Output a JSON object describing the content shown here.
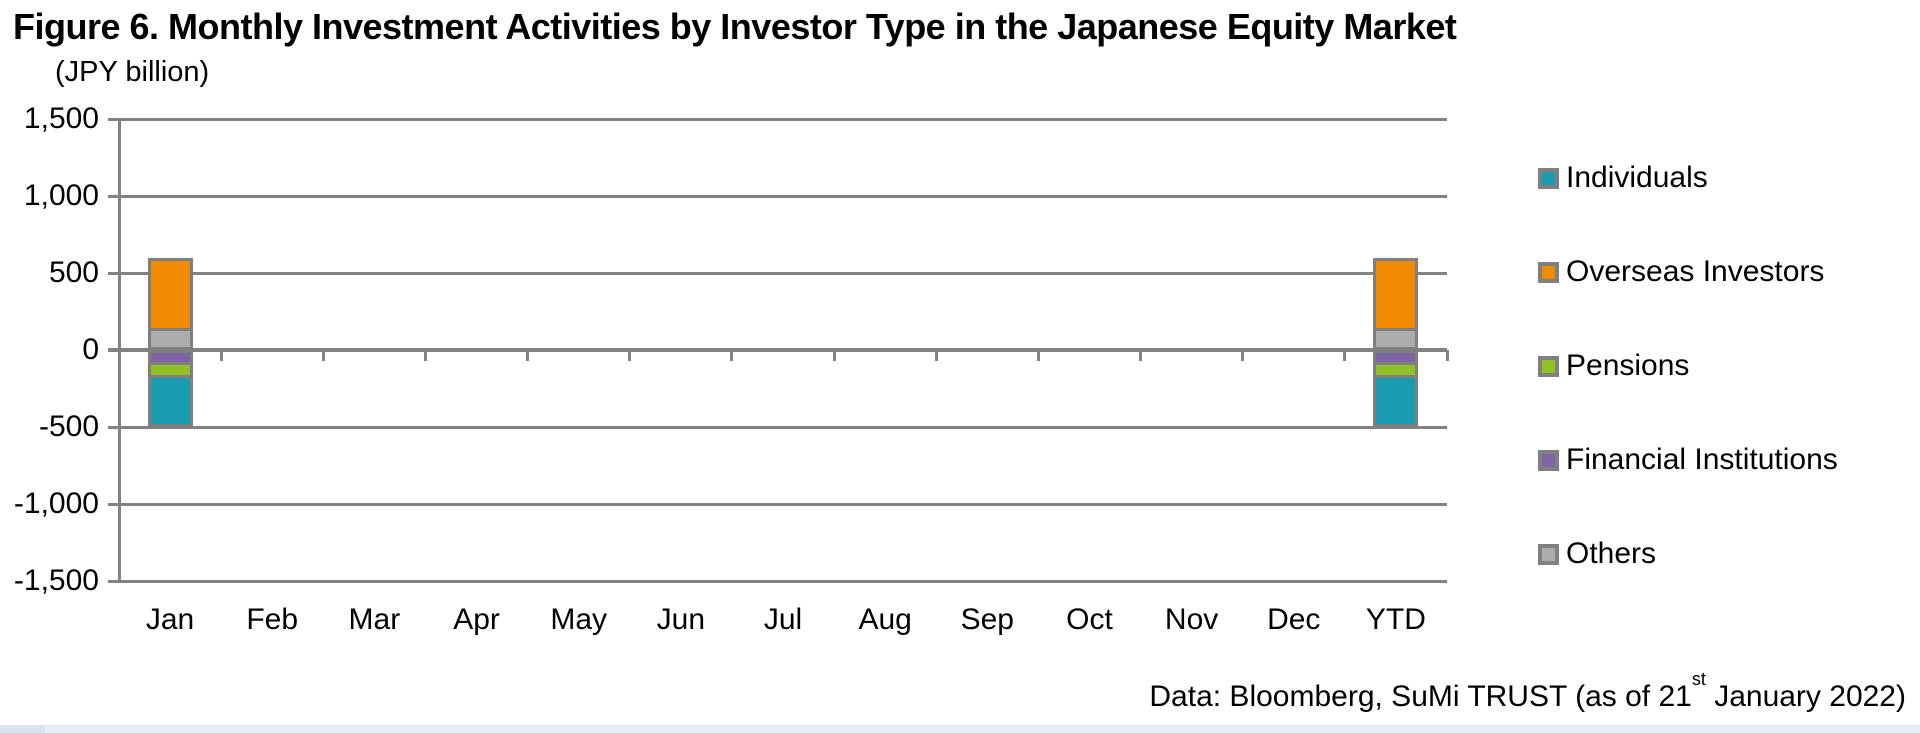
{
  "title": "Figure 6. Monthly Investment Activities by Investor Type in the Japanese Equity Market",
  "axis_unit_label": "(JPY billion)",
  "source_note": {
    "prefix": "Data: Bloomberg, SuMi TRUST (as of 21",
    "superscript": "st",
    "suffix": " January 2022)"
  },
  "colors": {
    "grid": "#828282",
    "bar_border": "#7f7f7f",
    "legend_swatch_border": "#808080",
    "bottom_strip": "#e6ecf4",
    "bottom_strip_left": "#d9e3ef",
    "text": "#000000"
  },
  "chart_data": {
    "type": "bar",
    "stacked": true,
    "title": "Figure 6. Monthly Investment Activities by Investor Type in the Japanese Equity Market",
    "ylabel": "(JPY billion)",
    "ylim": [
      -1500,
      1500
    ],
    "grid": true,
    "legend_position": "right",
    "categories": [
      "Jan",
      "Feb",
      "Mar",
      "Apr",
      "May",
      "Jun",
      "Jul",
      "Aug",
      "Sep",
      "Oct",
      "Nov",
      "Dec",
      "YTD"
    ],
    "yticks": [
      {
        "value": 1500,
        "label": "1,500"
      },
      {
        "value": 1000,
        "label": "1,000"
      },
      {
        "value": 500,
        "label": "500"
      },
      {
        "value": 0,
        "label": "0"
      },
      {
        "value": -500,
        "label": "-500"
      },
      {
        "value": -1000,
        "label": "-1,000"
      },
      {
        "value": -1500,
        "label": "-1,500"
      }
    ],
    "series": [
      {
        "name": "Individuals",
        "color": "#1a9cb0",
        "values": [
          -340,
          0,
          0,
          0,
          0,
          0,
          0,
          0,
          0,
          0,
          0,
          0,
          -340
        ]
      },
      {
        "name": "Overseas Investors",
        "color": "#f08a00",
        "values": [
          460,
          0,
          0,
          0,
          0,
          0,
          0,
          0,
          0,
          0,
          0,
          0,
          460
        ]
      },
      {
        "name": "Pensions",
        "color": "#90c226",
        "values": [
          -80,
          0,
          0,
          0,
          0,
          0,
          0,
          0,
          0,
          0,
          0,
          0,
          -80
        ]
      },
      {
        "name": "Financial Institutions",
        "color": "#7c64a5",
        "values": [
          -80,
          0,
          0,
          0,
          0,
          0,
          0,
          0,
          0,
          0,
          0,
          0,
          -80
        ]
      },
      {
        "name": "Others",
        "color": "#acacac",
        "values": [
          140,
          0,
          0,
          0,
          0,
          0,
          0,
          0,
          0,
          0,
          0,
          0,
          140
        ]
      }
    ],
    "stack_order_positive": [
      "Others",
      "Overseas Investors"
    ],
    "stack_order_negative": [
      "Financial Institutions",
      "Pensions",
      "Individuals"
    ]
  }
}
